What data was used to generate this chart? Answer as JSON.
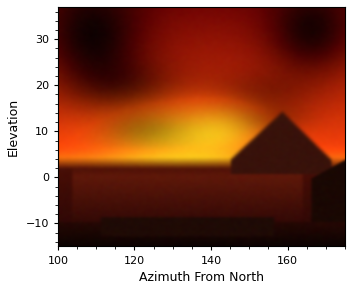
{
  "xlim": [
    100,
    175
  ],
  "ylim": [
    -15,
    37
  ],
  "xticks": [
    100,
    120,
    140,
    160
  ],
  "yticks": [
    -10,
    0,
    10,
    20,
    30
  ],
  "xlabel": "Azimuth From North",
  "ylabel": "Elevation",
  "xlabel_fontsize": 9,
  "ylabel_fontsize": 9,
  "tick_fontsize": 8,
  "fig_width": 3.52,
  "fig_height": 2.91,
  "dpi": 100,
  "bg_color": "#ffffff",
  "image_extent": [
    100,
    175,
    -15,
    37
  ]
}
